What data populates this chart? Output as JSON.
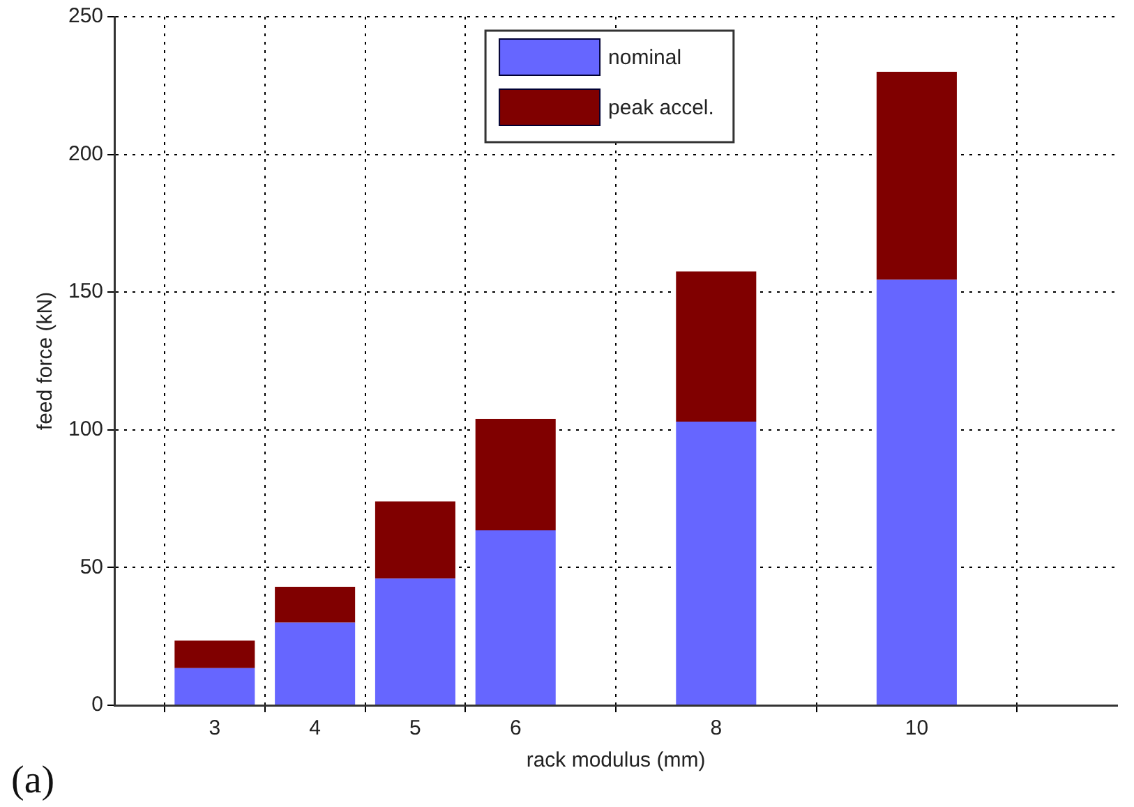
{
  "chart_data": {
    "type": "bar",
    "stacked": true,
    "xlabel": "rack modulus (mm)",
    "ylabel": "feed force (kN)",
    "x": [
      3,
      4,
      5,
      6,
      8,
      10
    ],
    "series": [
      {
        "name": "nominal",
        "color": "#6666ff",
        "values": [
          13.5,
          30,
          46,
          63.5,
          103,
          154.5
        ]
      },
      {
        "name": "peak accel.",
        "color": "#800000",
        "values": [
          10,
          13,
          28,
          40.5,
          54.5,
          75.5
        ]
      }
    ],
    "xlim": [
      2,
      12
    ],
    "xticks": [
      3,
      4,
      5,
      6,
      8,
      10
    ],
    "ylim": [
      0,
      250
    ],
    "yticks": [
      0,
      50,
      100,
      150,
      200,
      250
    ],
    "grid": true,
    "legend": "top",
    "annotations": [
      "(a)"
    ]
  }
}
